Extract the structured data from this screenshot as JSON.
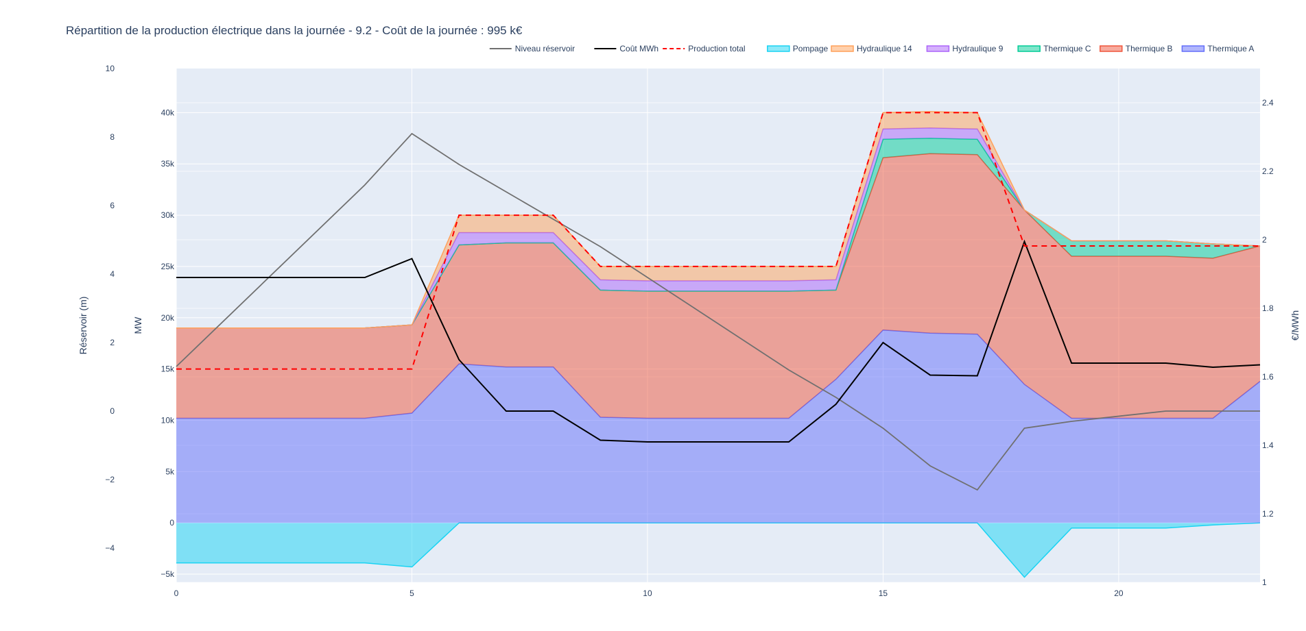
{
  "chart_data": {
    "type": "area",
    "title": "Répartition de la production électrique dans la journée - 9.2 - Coût de la journée : 995 k€",
    "x": [
      0,
      4,
      5,
      6,
      7,
      8,
      9,
      10,
      13,
      14,
      15,
      16,
      17,
      18,
      19,
      21,
      22,
      23
    ],
    "xaxis": {
      "range": [
        0,
        23
      ],
      "ticks": [
        0,
        5,
        10,
        15,
        20
      ],
      "tick_labels": [
        "0",
        "5",
        "10",
        "15",
        "20"
      ]
    },
    "yaxis_mw": {
      "title": "MW",
      "range": [
        -5800,
        44300
      ],
      "ticks": [
        -5000,
        0,
        5000,
        10000,
        15000,
        20000,
        25000,
        30000,
        35000,
        40000
      ],
      "tick_labels": [
        "−5k",
        "0",
        "5k",
        "10k",
        "15k",
        "20k",
        "25k",
        "30k",
        "35k",
        "40k"
      ]
    },
    "yaxis_reservoir": {
      "title": "Réservoir (m)",
      "range": [
        -5,
        10
      ],
      "ticks": [
        -4,
        -2,
        0,
        2,
        4,
        6,
        8,
        10
      ],
      "tick_labels": [
        "−4",
        "−2",
        "0",
        "2",
        "4",
        "6",
        "8",
        "10"
      ]
    },
    "yaxis_cost": {
      "title": "€/MWh",
      "range": [
        1,
        2.5
      ],
      "ticks": [
        1,
        1.2,
        1.4,
        1.6,
        1.8,
        2,
        2.2,
        2.4
      ],
      "tick_labels": [
        "1",
        "1.2",
        "1.4",
        "1.6",
        "1.8",
        "2",
        "2.2",
        "2.4"
      ]
    },
    "legend_position": "top-right",
    "grid": true,
    "legend": [
      {
        "key": "niveau",
        "label": "Niveau réservoir",
        "kind": "line",
        "color": "#707070",
        "dash": false
      },
      {
        "key": "cout",
        "label": "Coût MWh",
        "kind": "line",
        "color": "#000000",
        "dash": false
      },
      {
        "key": "total",
        "label": "Production total",
        "kind": "line",
        "color": "#ff0000",
        "dash": true
      },
      {
        "key": "pompage",
        "label": "Pompage",
        "kind": "area",
        "color": "#19d3f3"
      },
      {
        "key": "hydro14",
        "label": "Hydraulique 14",
        "kind": "area",
        "color": "#ffa15a"
      },
      {
        "key": "hydro9",
        "label": "Hydraulique 9",
        "kind": "area",
        "color": "#ab63fa"
      },
      {
        "key": "thermC",
        "label": "Thermique C",
        "kind": "area",
        "color": "#00cc96"
      },
      {
        "key": "thermB",
        "label": "Thermique B",
        "kind": "area",
        "color": "#ef553b"
      },
      {
        "key": "thermA",
        "label": "Thermique A",
        "kind": "area",
        "color": "#636efa"
      }
    ],
    "stacked_areas": [
      {
        "key": "thermA",
        "name": "Thermique A",
        "color": "#636efa",
        "values": [
          10200,
          10200,
          10700,
          15500,
          15200,
          15200,
          10300,
          10200,
          10200,
          14000,
          18800,
          18500,
          18400,
          13500,
          10200,
          10200,
          10200,
          13800
        ]
      },
      {
        "key": "thermB",
        "name": "Thermique B",
        "color": "#ef553b",
        "values": [
          8800,
          8800,
          8600,
          11600,
          12100,
          12100,
          12400,
          12400,
          12400,
          8700,
          16800,
          17500,
          17500,
          17000,
          15800,
          15800,
          15600,
          13200
        ]
      },
      {
        "key": "thermC",
        "name": "Thermique C",
        "color": "#00cc96",
        "values": [
          0,
          0,
          0,
          0,
          0,
          0,
          0,
          0,
          0,
          0,
          1800,
          1500,
          1500,
          0,
          1500,
          1500,
          1400,
          0
        ]
      },
      {
        "key": "hydro9",
        "name": "Hydraulique 9",
        "color": "#ab63fa",
        "values": [
          0,
          0,
          0,
          1200,
          1000,
          1000,
          1000,
          1000,
          1000,
          1000,
          1000,
          1000,
          1000,
          0,
          0,
          0,
          0,
          0
        ]
      },
      {
        "key": "hydro14",
        "name": "Hydraulique 14",
        "color": "#ffa15a",
        "values": [
          0,
          0,
          0,
          1700,
          1700,
          1700,
          1300,
          1400,
          1400,
          1300,
          1600,
          1600,
          1600,
          0,
          0,
          0,
          0,
          0
        ]
      }
    ],
    "pompage": {
      "name": "Pompage",
      "color": "#19d3f3",
      "values": [
        -3900,
        -3900,
        -4300,
        0,
        0,
        0,
        0,
        0,
        0,
        0,
        0,
        0,
        0,
        -5300,
        -500,
        -500,
        -200,
        0
      ]
    },
    "production_total": {
      "name": "Production total",
      "color": "#ff0000",
      "values": [
        15000,
        15000,
        15000,
        30000,
        30000,
        30000,
        25000,
        25000,
        25000,
        25000,
        40000,
        40000,
        40000,
        27000,
        27000,
        27000,
        27000,
        27000
      ]
    },
    "niveau_reservoir": {
      "name": "Niveau réservoir",
      "color": "#707070",
      "values": [
        1.3,
        6.6,
        8.1,
        7.2,
        6.4,
        5.6,
        4.8,
        3.9,
        1.2,
        0.4,
        -0.5,
        -1.6,
        -2.3,
        -0.5,
        -0.3,
        0,
        0,
        0
      ]
    },
    "cout_mwh": {
      "name": "Coût MWh",
      "color": "#000000",
      "values": [
        1.89,
        1.89,
        1.945,
        1.65,
        1.5,
        1.5,
        1.415,
        1.41,
        1.41,
        1.52,
        1.7,
        1.605,
        1.603,
        1.995,
        1.64,
        1.64,
        1.628,
        1.635
      ]
    }
  }
}
